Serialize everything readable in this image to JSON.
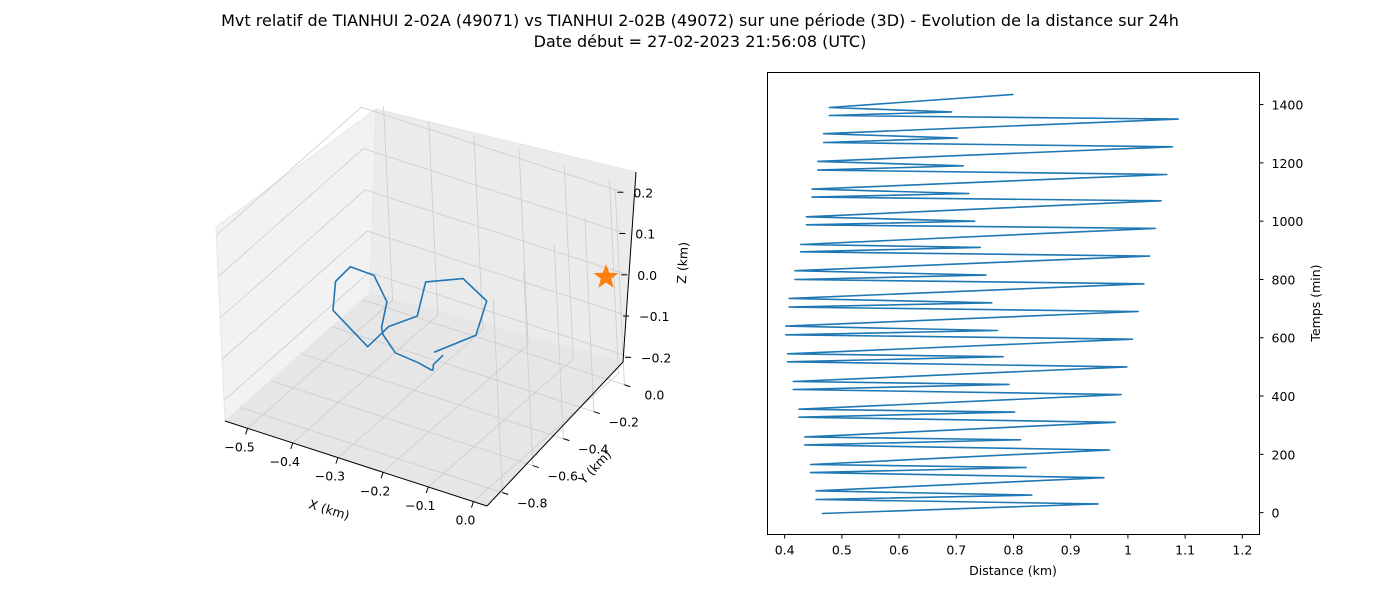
{
  "title_line1": "Mvt relatif de TIANHUI 2-02A (49071) vs TIANHUI 2-02B (49072) sur une période (3D) - Evolution de la distance sur 24h",
  "title_line2": "Date début = 27-02-2023 21:56:08 (UTC)",
  "colors": {
    "series": "#1f77b4",
    "marker": "#ff7f0e",
    "pane": "#f2f2f2",
    "grid": "#cccccc"
  },
  "chart_data": [
    {
      "type": "line3d",
      "xlabel": "X (km)",
      "ylabel": "Y (km)",
      "zlabel": "Z (km)",
      "xticks": [
        "−0.5",
        "−0.4",
        "−0.3",
        "−0.2",
        "−0.1",
        "0.0"
      ],
      "yticks": [
        "0.0",
        "−0.2",
        "−0.4",
        "−0.6",
        "−0.8"
      ],
      "zticks": [
        "0.2",
        "0.1",
        "0.0",
        "−0.1",
        "−0.2"
      ],
      "xlim": [
        -0.55,
        0.03
      ],
      "ylim": [
        -0.9,
        0.05
      ],
      "zlim": [
        -0.25,
        0.22
      ],
      "marker": {
        "symbol": "star",
        "x": 0,
        "y": 0,
        "z": 0
      },
      "series": [
        {
          "x": [
            -0.18,
            -0.12,
            -0.11,
            -0.15,
            -0.22,
            -0.25,
            -0.34,
            -0.4,
            -0.46,
            -0.43,
            -0.37,
            -0.3,
            -0.27,
            -0.31,
            -0.35,
            -0.36,
            -0.32,
            -0.27,
            -0.22,
            -0.19,
            -0.16
          ],
          "y": [
            -0.6,
            -0.5,
            -0.45,
            -0.48,
            -0.52,
            -0.5,
            -0.43,
            -0.4,
            -0.44,
            -0.5,
            -0.57,
            -0.62,
            -0.63,
            -0.56,
            -0.44,
            -0.34,
            -0.31,
            -0.37,
            -0.5,
            -0.58,
            -0.6
          ],
          "z": [
            -0.05,
            -0.02,
            0.05,
            0.1,
            0.08,
            -0.02,
            -0.1,
            -0.18,
            -0.1,
            0.0,
            0.08,
            0.1,
            0.05,
            -0.05,
            -0.12,
            -0.2,
            -0.22,
            -0.2,
            -0.14,
            -0.09,
            -0.05
          ]
        }
      ]
    },
    {
      "type": "line",
      "xlabel": "Distance (km)",
      "ylabel": "Temps (min)",
      "xlim": [
        0.37,
        1.23
      ],
      "ylim": [
        -75,
        1510
      ],
      "xticks": [
        0.4,
        0.5,
        0.6,
        0.7,
        0.8,
        0.9,
        1.0,
        1.1,
        1.2
      ],
      "yticks": [
        0,
        200,
        400,
        600,
        800,
        1000,
        1200,
        1400
      ],
      "series": [
        {
          "max_peaks": [
            [
              0.948,
              30
            ],
            [
              0.958,
              120
            ],
            [
              0.968,
              215
            ],
            [
              0.978,
              310
            ],
            [
              0.988,
              405
            ],
            [
              0.998,
              500
            ],
            [
              1.008,
              595
            ],
            [
              1.018,
              690
            ],
            [
              1.028,
              785
            ],
            [
              1.038,
              880
            ],
            [
              1.048,
              975
            ],
            [
              1.058,
              1070
            ],
            [
              1.068,
              1160
            ],
            [
              1.078,
              1255
            ],
            [
              1.088,
              1350
            ]
          ],
          "min_peaks": [
            [
              0.465,
              -3
            ],
            [
              0.455,
              75
            ],
            [
              0.445,
              165
            ],
            [
              0.435,
              260
            ],
            [
              0.425,
              355
            ],
            [
              0.415,
              450
            ],
            [
              0.405,
              545
            ],
            [
              0.402,
              640
            ],
            [
              0.408,
              735
            ],
            [
              0.418,
              830
            ],
            [
              0.428,
              920
            ],
            [
              0.438,
              1015
            ],
            [
              0.448,
              1110
            ],
            [
              0.458,
              1205
            ],
            [
              0.468,
              1300
            ],
            [
              0.478,
              1390
            ]
          ],
          "secondary_peaks": [
            [
              0.832,
              60
            ],
            [
              0.822,
              155
            ],
            [
              0.812,
              250
            ],
            [
              0.802,
              345
            ],
            [
              0.792,
              440
            ],
            [
              0.782,
              535
            ],
            [
              0.772,
              625
            ],
            [
              0.762,
              720
            ],
            [
              0.752,
              815
            ],
            [
              0.742,
              910
            ],
            [
              0.732,
              1000
            ],
            [
              0.722,
              1095
            ],
            [
              0.712,
              1190
            ],
            [
              0.702,
              1285
            ],
            [
              0.692,
              1375
            ]
          ],
          "end": [
            0.8,
            1435
          ]
        }
      ]
    }
  ]
}
